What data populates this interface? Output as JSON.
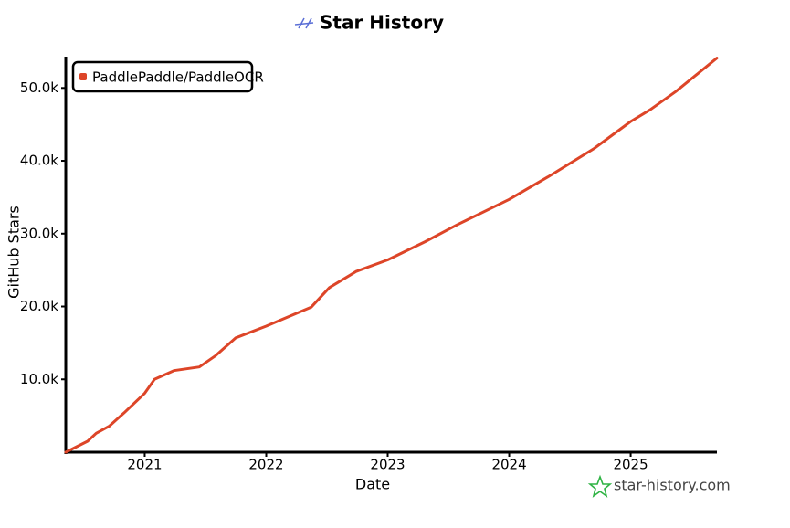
{
  "chart_data": {
    "type": "line",
    "title": "Star History",
    "x_label": "Date",
    "y_label": "GitHub Stars",
    "watermark": "star-history.com",
    "legend": "top-left",
    "xlim": [
      2020.35,
      2025.71
    ],
    "xticks": [
      2021,
      2022,
      2023,
      2024,
      2025
    ],
    "ylim": [
      0,
      54300
    ],
    "yticks": [
      {
        "value": 10000,
        "label": "10.0k"
      },
      {
        "value": 20000,
        "label": "20.0k"
      },
      {
        "value": 30000,
        "label": "30.0k"
      },
      {
        "value": 40000,
        "label": "40.0k"
      },
      {
        "value": 50000,
        "label": "50.0k"
      }
    ],
    "x": [
      2020.35,
      2020.53,
      2020.6,
      2020.71,
      2020.83,
      2021.0,
      2021.08,
      2021.24,
      2021.45,
      2021.58,
      2021.75,
      2022.0,
      2022.14,
      2022.37,
      2022.52,
      2022.74,
      2023.0,
      2023.31,
      2023.57,
      2024.0,
      2024.32,
      2024.7,
      2025.0,
      2025.16,
      2025.37,
      2025.71
    ],
    "series": [
      {
        "name": "PaddlePaddle/PaddleOCR",
        "color": "#dd4528",
        "values": [
          0,
          1500,
          2600,
          3600,
          5400,
          8100,
          10000,
          11200,
          11700,
          13200,
          15700,
          17300,
          18300,
          19900,
          22600,
          24800,
          26400,
          28900,
          31200,
          34700,
          37800,
          41700,
          45400,
          47000,
          49500,
          54100
        ]
      }
    ]
  }
}
